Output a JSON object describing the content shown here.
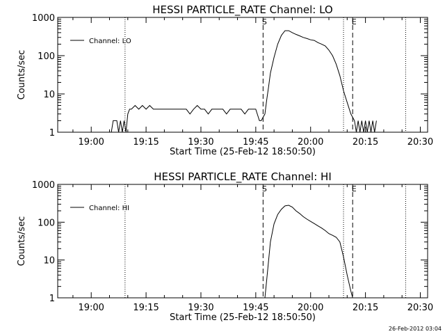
{
  "footer": {
    "timestamp": "26-Feb-2012 03:04"
  },
  "colors": {
    "background": "#ffffff",
    "foreground": "#000000"
  },
  "chart_data": [
    {
      "type": "line",
      "title": "HESSI PARTICLE_RATE Channel: LO",
      "xlabel": "Start Time (25-Feb-12 18:50:50)",
      "ylabel": "Counts/sec",
      "y_scale": "log",
      "ylim": [
        1,
        1000
      ],
      "yticks": [
        1,
        10,
        100,
        1000
      ],
      "ytick_labels": [
        "1",
        "10",
        "100",
        "1000"
      ],
      "xlim": [
        "18:50:50",
        "20:32:00"
      ],
      "xticks": [
        "19:00",
        "19:15",
        "19:30",
        "19:45",
        "20:00",
        "20:15",
        "20:30"
      ],
      "grid": false,
      "legend": {
        "position": "upper-left"
      },
      "series": [
        {
          "name": "Channel: LO",
          "x": [
            "19:05:30",
            "19:06:00",
            "19:07:00",
            "19:07:30",
            "19:08:00",
            "19:08:30",
            "19:09:00",
            "19:09:30",
            "19:10:00",
            "19:10:30",
            "19:11:00",
            "19:12:00",
            "19:13:00",
            "19:14:00",
            "19:15:00",
            "19:16:00",
            "19:17:00",
            "19:18:00",
            "19:19:00",
            "19:20:00",
            "19:21:00",
            "19:22:00",
            "19:23:00",
            "19:24:00",
            "19:25:00",
            "19:26:00",
            "19:27:00",
            "19:28:00",
            "19:29:00",
            "19:30:00",
            "19:31:00",
            "19:32:00",
            "19:33:00",
            "19:34:00",
            "19:35:00",
            "19:36:00",
            "19:37:00",
            "19:38:00",
            "19:39:00",
            "19:40:00",
            "19:41:00",
            "19:42:00",
            "19:43:00",
            "19:44:00",
            "19:45:00",
            "19:46:00",
            "19:46:30",
            "19:47:30",
            "19:48:00",
            "19:48:30",
            "19:49:00",
            "19:50:00",
            "19:51:00",
            "19:52:00",
            "19:53:00",
            "19:54:00",
            "19:55:00",
            "19:56:00",
            "19:57:00",
            "19:58:00",
            "19:59:00",
            "20:00:00",
            "20:01:00",
            "20:02:00",
            "20:03:00",
            "20:04:00",
            "20:05:00",
            "20:06:00",
            "20:07:00",
            "20:08:00",
            "20:09:00",
            "20:10:00",
            "20:11:00",
            "20:12:00",
            "20:12:30",
            "20:13:00",
            "20:13:30",
            "20:14:00",
            "20:14:30",
            "20:15:00",
            "20:15:30",
            "20:16:00",
            "20:16:30",
            "20:17:00",
            "20:17:30",
            "20:18:00"
          ],
          "y": [
            1,
            2,
            2,
            1,
            2,
            1,
            2,
            1,
            3,
            4,
            4,
            5,
            4,
            5,
            4,
            5,
            4,
            4,
            4,
            4,
            4,
            4,
            4,
            4,
            4,
            4,
            3,
            4,
            5,
            4,
            4,
            3,
            4,
            4,
            4,
            4,
            3,
            4,
            4,
            4,
            4,
            3,
            4,
            4,
            4,
            2,
            2,
            3,
            7,
            15,
            35,
            90,
            200,
            340,
            450,
            450,
            400,
            360,
            330,
            300,
            280,
            260,
            250,
            220,
            200,
            180,
            140,
            100,
            60,
            30,
            12,
            6,
            3,
            2,
            1,
            2,
            1,
            2,
            1,
            2,
            1,
            2,
            1,
            2,
            1,
            2
          ]
        }
      ],
      "vertical_lines": [
        {
          "x": "19:09:15",
          "style": "dotted"
        },
        {
          "x": "19:47:00",
          "style": "dashed",
          "label": "S"
        },
        {
          "x": "20:09:00",
          "style": "dotted"
        },
        {
          "x": "20:11:30",
          "style": "dashed",
          "label": "E"
        },
        {
          "x": "20:26:00",
          "style": "dotted"
        }
      ]
    },
    {
      "type": "line",
      "title": "HESSI PARTICLE_RATE Channel: HI",
      "xlabel": "Start Time (25-Feb-12 18:50:50)",
      "ylabel": "Counts/sec",
      "y_scale": "log",
      "ylim": [
        1,
        1000
      ],
      "yticks": [
        1,
        10,
        100,
        1000
      ],
      "ytick_labels": [
        "1",
        "10",
        "100",
        "1000"
      ],
      "xlim": [
        "18:50:50",
        "20:32:00"
      ],
      "xticks": [
        "19:00",
        "19:15",
        "19:30",
        "19:45",
        "20:00",
        "20:15",
        "20:30"
      ],
      "grid": false,
      "legend": {
        "position": "upper-left"
      },
      "series": [
        {
          "name": "Channel: HI",
          "x": [
            "19:47:30",
            "19:48:00",
            "19:49:00",
            "19:50:00",
            "19:51:00",
            "19:52:00",
            "19:53:00",
            "19:54:00",
            "19:55:00",
            "19:56:00",
            "19:57:00",
            "19:58:00",
            "19:59:00",
            "20:00:00",
            "20:01:00",
            "20:02:00",
            "20:03:00",
            "20:04:00",
            "20:05:00",
            "20:06:00",
            "20:07:00",
            "20:08:00",
            "20:09:00",
            "20:10:00",
            "20:11:00",
            "20:11:30"
          ],
          "y": [
            1,
            3,
            30,
            90,
            160,
            220,
            270,
            280,
            250,
            200,
            170,
            140,
            120,
            105,
            92,
            80,
            70,
            60,
            50,
            45,
            40,
            30,
            12,
            4,
            1.5,
            1
          ]
        }
      ],
      "vertical_lines": [
        {
          "x": "19:47:00",
          "style": "dashed",
          "label": "S"
        },
        {
          "x": "19:09:15",
          "style": "dotted"
        },
        {
          "x": "20:09:00",
          "style": "dotted"
        },
        {
          "x": "20:11:30",
          "style": "dashed",
          "label": "E"
        },
        {
          "x": "20:26:00",
          "style": "dotted"
        }
      ]
    }
  ]
}
